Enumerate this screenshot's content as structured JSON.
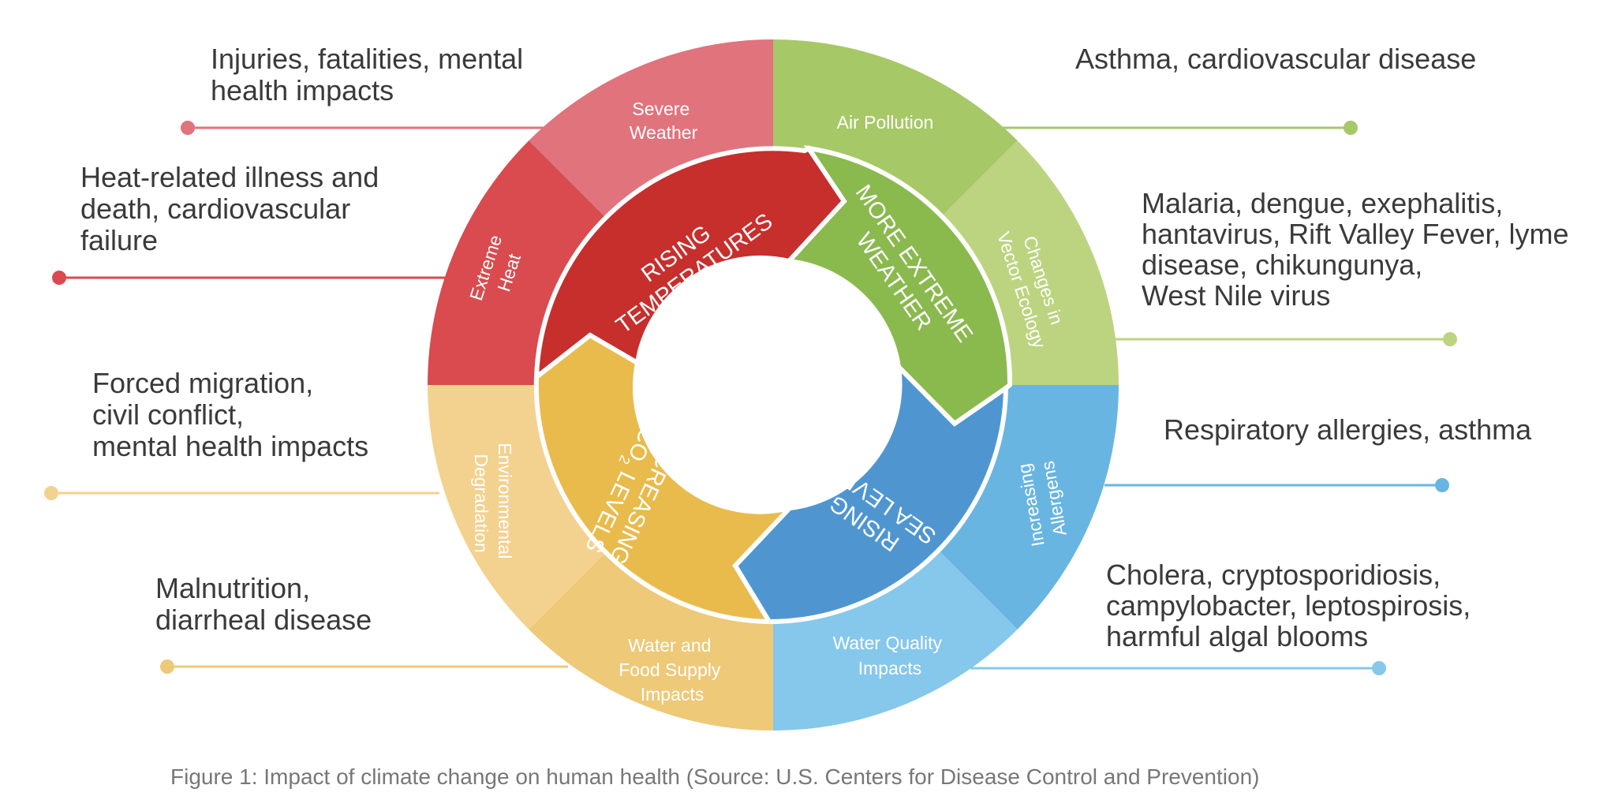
{
  "colors": {
    "severe_weather": "#e0737c",
    "extreme_heat": "#d94b4e",
    "air_pollution": "#a6c867",
    "vector_ecology": "#bcd47f",
    "allergens": "#68b5e2",
    "water_quality": "#86c7ec",
    "water_food": "#edc978",
    "environmental": "#f3d18f",
    "rising_temperatures": "#c72f2c",
    "more_extreme_weather": "#8ab94e",
    "rising_sea_levels": "#4f96d1",
    "increasing_co2": "#e9bb4c",
    "text": "#3a3a3a",
    "caption": "#777777"
  },
  "outer_ring": {
    "severe_weather": [
      "Severe",
      "Weather"
    ],
    "extreme_heat": [
      "Extreme",
      "Heat"
    ],
    "air_pollution": [
      "Air Pollution"
    ],
    "vector_ecology": [
      "Changes in",
      "Vector Ecology"
    ],
    "allergens": [
      "Increasing",
      "Allergens"
    ],
    "water_quality": [
      "Water Quality",
      "Impacts"
    ],
    "water_food": [
      "Water and",
      "Food Supply",
      "Impacts"
    ],
    "environmental": [
      "Environmental",
      "Degradation"
    ]
  },
  "inner_ring": {
    "rising_temperatures": [
      "RISING",
      "TEMPERATURES"
    ],
    "more_extreme_weather": [
      "MORE EXTREME",
      "WEATHER"
    ],
    "rising_sea_levels": [
      "RISING",
      "SEA LEVELS"
    ],
    "increasing_co2": {
      "line1": "INCREASING",
      "co": "CO",
      "sub": "2",
      "levels": " LEVELS"
    }
  },
  "impacts": {
    "severe_weather": [
      "Injuries, fatalities, mental",
      "health impacts"
    ],
    "extreme_heat": [
      "Heat-related illness and",
      "death, cardiovascular",
      "failure"
    ],
    "environmental": [
      "Forced migration,",
      "civil conflict,",
      "mental health impacts"
    ],
    "water_food": [
      "Malnutrition,",
      "diarrheal disease"
    ],
    "air_pollution": [
      "Asthma, cardiovascular disease"
    ],
    "vector_ecology": [
      "Malaria, dengue, exephalitis,",
      "hantavirus, Rift Valley Fever, lyme",
      "disease, chikungunya,",
      "West Nile virus"
    ],
    "allergens": [
      "Respiratory allergies, asthma"
    ],
    "water_quality": [
      "Cholera, cryptosporidiosis,",
      "campylobacter, leptospirosis,",
      "harmful algal blooms"
    ]
  },
  "caption": "Figure 1: Impact of climate change on human health (Source: U.S. Centers for Disease Control and Prevention)"
}
